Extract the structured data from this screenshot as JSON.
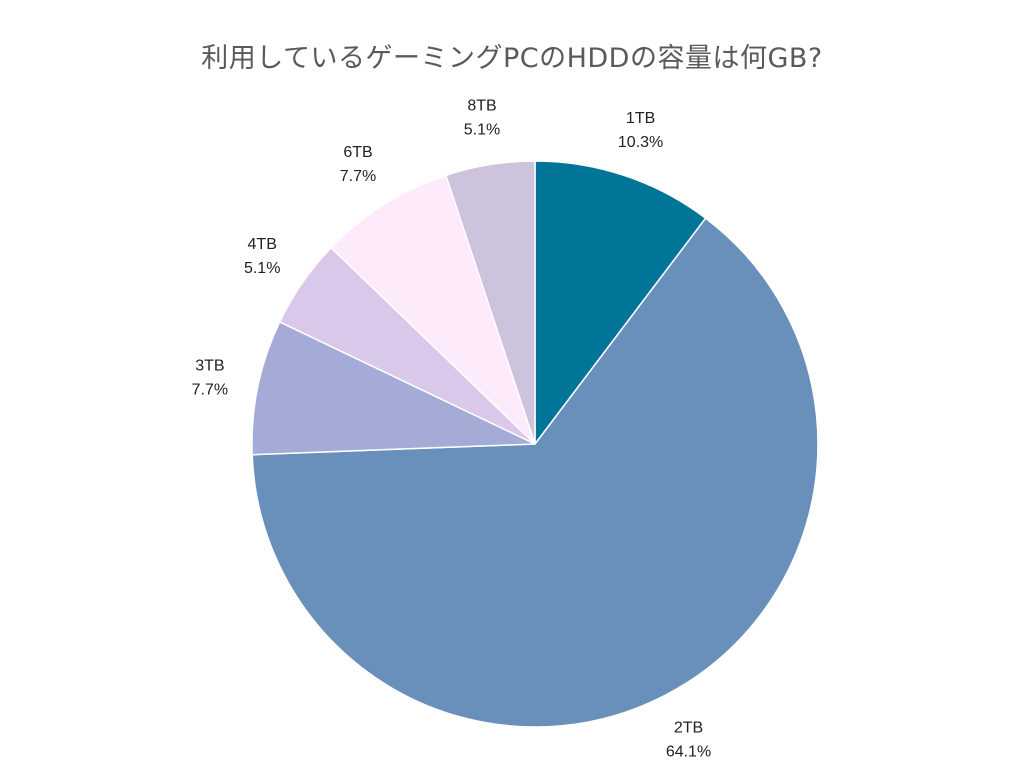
{
  "chart_data": {
    "type": "pie",
    "title": "利用しているゲーミングPCのHDDの容量は何GB?",
    "slices": [
      {
        "label": "1TB",
        "percent_label": "10.3%",
        "value": 10.3,
        "color": "#017597"
      },
      {
        "label": "2TB",
        "percent_label": "64.1%",
        "value": 64.1,
        "color": "#6890bb"
      },
      {
        "label": "3TB",
        "percent_label": "7.7%",
        "value": 7.7,
        "color": "#a3abd6"
      },
      {
        "label": "4TB",
        "percent_label": "5.1%",
        "value": 5.1,
        "color": "#d9c8ea"
      },
      {
        "label": "6TB",
        "percent_label": "7.7%",
        "value": 7.7,
        "color": "#fdebfc"
      },
      {
        "label": "8TB",
        "percent_label": "5.1%",
        "value": 5.1,
        "color": "#cdc3dc"
      }
    ],
    "start": "top",
    "direction": "clockwise",
    "legend": "none"
  }
}
